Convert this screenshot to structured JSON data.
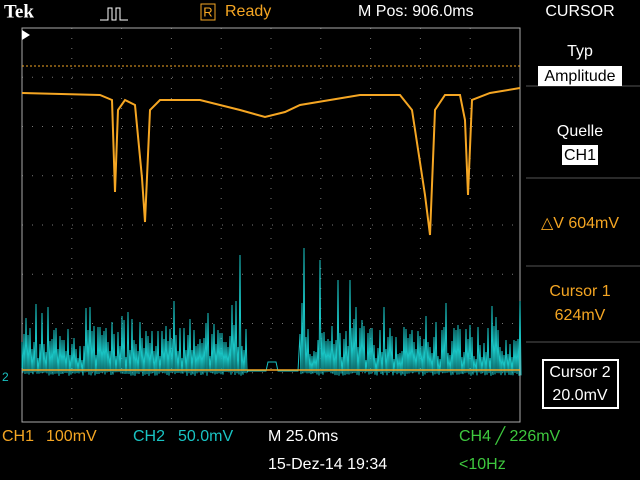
{
  "header": {
    "brand": "Tek",
    "status_flag": "R",
    "status": "Ready",
    "position": "M Pos: 906.0ms",
    "menu_title": "CURSOR"
  },
  "screen": {
    "ch2_marker": "2"
  },
  "menu": {
    "type_label": "Typ",
    "type_value": "Amplitude",
    "source_label": "Quelle",
    "source_value": "CH1",
    "delta": "△V 604mV",
    "cursor1_label": "Cursor 1",
    "cursor1_value": "624mV",
    "cursor2_label": "Cursor 2",
    "cursor2_value": "20.0mV"
  },
  "footer": {
    "ch1": "CH1",
    "ch1_scale": "100mV",
    "ch2": "CH2",
    "ch2_scale": "50.0mV",
    "timebase": "M 25.0ms",
    "trigger": "CH4 ╱ 226mV",
    "date": "15-Dez-14 19:34",
    "frequency": "<10Hz"
  }
}
